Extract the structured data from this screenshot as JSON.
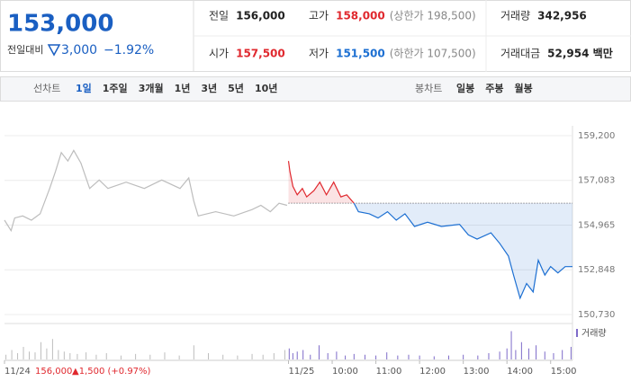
{
  "quote": {
    "price": "153,000",
    "change_label": "전일대비",
    "change": "3,000",
    "change_pct": "−1.92%"
  },
  "fields": [
    {
      "label": "전일",
      "value": "156,000"
    },
    {
      "label": "고가",
      "value": "158,000",
      "note": "(상한가 198,500)"
    },
    {
      "label": "거래량",
      "value": "342,956"
    },
    {
      "label": "시가",
      "value": "157,500"
    },
    {
      "label": "저가",
      "value": "151,500",
      "note": "(하한가 107,500)"
    },
    {
      "label": "거래대금",
      "value": "52,954 백만"
    }
  ],
  "toolbar": {
    "line_label": "선차트",
    "line_options": [
      "1일",
      "1주일",
      "3개월",
      "1년",
      "3년",
      "5년",
      "10년"
    ],
    "candle_label": "봉차트",
    "candle_options": [
      "일봉",
      "주봉",
      "월봉"
    ]
  },
  "chart_data": {
    "type": "line",
    "prev_close_label": "156,000",
    "prev_change_label": "▲1,500 (+0.97%)",
    "reference_line": 156000,
    "ylim": [
      150730,
      159200
    ],
    "yticks": [
      {
        "value": 159200,
        "label": "159,200"
      },
      {
        "value": 157083,
        "label": "157,083"
      },
      {
        "value": 154965,
        "label": "154,965"
      },
      {
        "value": 152848,
        "label": "152,848"
      },
      {
        "value": 150730,
        "label": "150,730"
      }
    ],
    "xlim": [
      150,
      930
    ],
    "xticks": [
      {
        "value": 150,
        "label": "11/24"
      },
      {
        "value": 540,
        "label": "11/25"
      },
      {
        "value": 600,
        "label": "10:00"
      },
      {
        "value": 660,
        "label": "11:00"
      },
      {
        "value": 720,
        "label": "12:00"
      },
      {
        "value": 780,
        "label": "13:00"
      },
      {
        "value": 840,
        "label": "14:00"
      },
      {
        "value": 900,
        "label": "15:00"
      }
    ],
    "grid": true,
    "series": [
      {
        "color": "#bdbdbd",
        "x": [
          150,
          159,
          164,
          175,
          187,
          199,
          212,
          220,
          228,
          237,
          245,
          255,
          267,
          280,
          292,
          317,
          342,
          366,
          391,
          403,
          410,
          416,
          440,
          465,
          490,
          502,
          515,
          527,
          538
        ],
        "values": [
          155200,
          154700,
          155300,
          155400,
          155200,
          155500,
          156700,
          157500,
          158400,
          158000,
          158500,
          157900,
          156700,
          157100,
          156700,
          157000,
          156700,
          157100,
          156700,
          157200,
          156100,
          155400,
          155600,
          155400,
          155700,
          155900,
          155600,
          156000,
          155900
        ]
      },
      {
        "color": "#e0282e",
        "down_color": "#1c6fd2",
        "x": [
          540,
          542,
          546,
          552,
          559,
          565,
          575,
          583,
          592,
          602,
          612,
          620,
          630,
          636,
          651,
          663,
          676,
          688,
          700,
          713,
          731,
          750,
          775,
          787,
          799,
          818,
          830,
          842,
          849,
          858,
          867,
          876,
          883,
          892,
          900,
          910,
          920,
          930
        ],
        "values": [
          158000,
          157500,
          156800,
          156400,
          156700,
          156300,
          156600,
          157000,
          156400,
          157000,
          156300,
          156400,
          156000,
          155600,
          155500,
          155300,
          155600,
          155200,
          155500,
          154900,
          155100,
          154900,
          155000,
          154500,
          154300,
          154600,
          154100,
          153500,
          152600,
          151500,
          152200,
          151800,
          153300,
          152600,
          153000,
          152700,
          153000,
          153000
        ]
      }
    ],
    "volume": {
      "name": "거래량",
      "ylim": [
        0,
        40
      ],
      "series": [
        {
          "color": "#bdbdbd",
          "x": [
            152,
            160,
            168,
            176,
            184,
            192,
            200,
            208,
            216,
            224,
            232,
            240,
            250,
            262,
            276,
            290,
            310,
            330,
            350,
            370,
            390,
            410,
            430,
            450,
            470,
            490,
            505,
            520,
            535
          ],
          "values": [
            6,
            12,
            8,
            16,
            10,
            9,
            22,
            14,
            26,
            12,
            10,
            8,
            7,
            9,
            6,
            8,
            5,
            7,
            6,
            9,
            5,
            18,
            8,
            6,
            5,
            7,
            6,
            8,
            12
          ]
        },
        {
          "color": "#7e6bc9",
          "x": [
            541,
            546,
            552,
            560,
            570,
            582,
            594,
            606,
            618,
            630,
            645,
            660,
            675,
            690,
            705,
            720,
            740,
            760,
            780,
            800,
            815,
            830,
            840,
            846,
            852,
            860,
            870,
            880,
            892,
            904,
            916,
            928
          ],
          "values": [
            14,
            8,
            10,
            12,
            6,
            18,
            8,
            10,
            5,
            7,
            6,
            5,
            9,
            5,
            6,
            5,
            4,
            5,
            6,
            5,
            8,
            10,
            14,
            36,
            12,
            22,
            14,
            18,
            10,
            8,
            12,
            16
          ]
        }
      ]
    }
  }
}
